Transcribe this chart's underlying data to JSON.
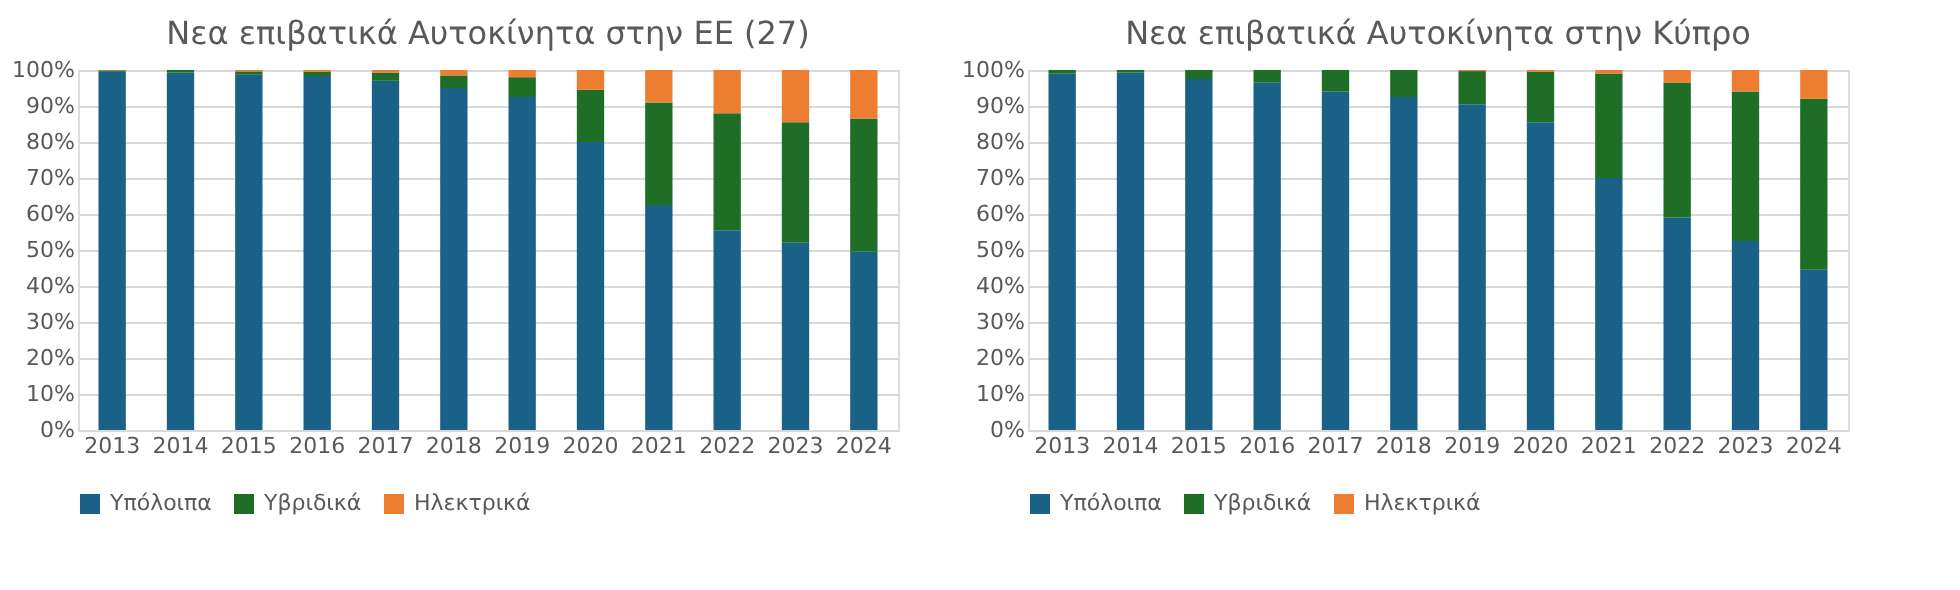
{
  "chart_data": [
    {
      "type": "bar",
      "title": "Νεα επιβατικά Αυτοκίνητα στην ΕΕ (27)",
      "stacked": true,
      "legend": "bottom",
      "grid": "y",
      "categories": [
        "2013",
        "2014",
        "2015",
        "2016",
        "2017",
        "2018",
        "2019",
        "2020",
        "2021",
        "2022",
        "2023",
        "2024"
      ],
      "ylim": [
        0,
        100
      ],
      "yticks": [
        {
          "value": 0,
          "label": "0%"
        },
        {
          "value": 10,
          "label": "10%"
        },
        {
          "value": 20,
          "label": "20%"
        },
        {
          "value": 30,
          "label": "30%"
        },
        {
          "value": 40,
          "label": "40%"
        },
        {
          "value": 50,
          "label": "50%"
        },
        {
          "value": 60,
          "label": "60%"
        },
        {
          "value": 70,
          "label": "70%"
        },
        {
          "value": 80,
          "label": "80%"
        },
        {
          "value": 90,
          "label": "90%"
        },
        {
          "value": 100,
          "label": "100%"
        }
      ],
      "series": [
        {
          "name": "Υπόλοιπα",
          "color": "#1a6188",
          "values": [
            99.5,
            99.3,
            98.8,
            98.3,
            97,
            95,
            92.5,
            80,
            62.5,
            55.5,
            52,
            49.5
          ]
        },
        {
          "name": "Υβριδικά",
          "color": "#1e6e28",
          "values": [
            0.4,
            0.7,
            0.8,
            1.2,
            2.3,
            3.5,
            5.5,
            14.5,
            28.5,
            32.5,
            33.5,
            37
          ]
        },
        {
          "name": "Ηλεκτρικά",
          "color": "#ed7d31",
          "values": [
            0.1,
            null,
            0.4,
            0.5,
            0.7,
            1.5,
            2,
            5.5,
            9,
            12,
            14.5,
            13.5
          ]
        }
      ]
    },
    {
      "type": "bar",
      "title": "Νεα επιβατικά Αυτοκίνητα στην Κύπρο",
      "stacked": true,
      "legend": "bottom",
      "grid": "y",
      "categories": [
        "2013",
        "2014",
        "2015",
        "2016",
        "2017",
        "2018",
        "2019",
        "2020",
        "2021",
        "2022",
        "2023",
        "2024"
      ],
      "ylim": [
        0,
        100
      ],
      "yticks": [
        {
          "value": 0,
          "label": "0%"
        },
        {
          "value": 10,
          "label": "10%"
        },
        {
          "value": 20,
          "label": "20%"
        },
        {
          "value": 30,
          "label": "30%"
        },
        {
          "value": 40,
          "label": "40%"
        },
        {
          "value": 50,
          "label": "50%"
        },
        {
          "value": 60,
          "label": "60%"
        },
        {
          "value": 70,
          "label": "70%"
        },
        {
          "value": 80,
          "label": "80%"
        },
        {
          "value": 90,
          "label": "90%"
        },
        {
          "value": 100,
          "label": "100%"
        }
      ],
      "series": [
        {
          "name": "Υπόλοιπα",
          "color": "#1a6188",
          "values": [
            99,
            99.3,
            97.5,
            96.5,
            94,
            92.5,
            90.5,
            85.5,
            70,
            59,
            52.5,
            44.5
          ]
        },
        {
          "name": "Υβριδικά",
          "color": "#1e6e28",
          "values": [
            1,
            0.7,
            2.5,
            3.5,
            6,
            7.5,
            9.2,
            14,
            29,
            37.5,
            41.5,
            47.5
          ]
        },
        {
          "name": "Ηλεκτρικά",
          "color": "#ed7d31",
          "values": [
            0,
            0,
            null,
            null,
            null,
            null,
            0.3,
            0.5,
            1,
            3.5,
            6,
            8
          ]
        }
      ]
    }
  ]
}
